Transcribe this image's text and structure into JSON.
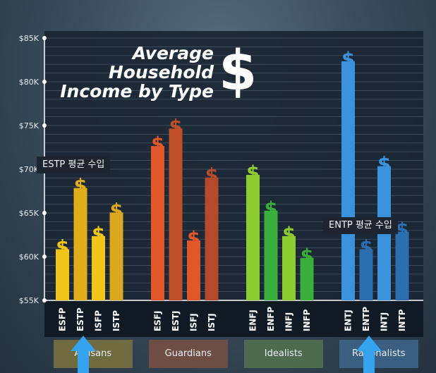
{
  "chart_data": {
    "type": "bar",
    "title_lines": [
      "Average",
      "Household",
      "Income by Type"
    ],
    "title_symbol": "$",
    "bar_symbol": "$",
    "ylim": [
      55000,
      85000
    ],
    "y_ticks": [
      {
        "value": 55000,
        "label": "$55K"
      },
      {
        "value": 60000,
        "label": "$60K"
      },
      {
        "value": 65000,
        "label": "$65K"
      },
      {
        "value": 70000,
        "label": "$70K"
      },
      {
        "value": 75000,
        "label": "$75K"
      },
      {
        "value": 80000,
        "label": "$80K"
      },
      {
        "value": 85000,
        "label": "$85K"
      }
    ],
    "groups": [
      {
        "name": "Artisans",
        "color": "#e3b31c",
        "label_bg": "#6f6a3f",
        "bars": [
          {
            "label": "ESFP",
            "value": 61500,
            "color": "#f0c419"
          },
          {
            "label": "ESTP",
            "value": 68500,
            "color": "#e0ad1c"
          },
          {
            "label": "ISFP",
            "value": 63000,
            "color": "#f0c419"
          },
          {
            "label": "ISTP",
            "value": 65700,
            "color": "#dba71f"
          }
        ]
      },
      {
        "name": "Guardians",
        "color": "#c65a2c",
        "label_bg": "#6e4d44",
        "bars": [
          {
            "label": "ESFJ",
            "value": 73300,
            "color": "#e1572a"
          },
          {
            "label": "ESTJ",
            "value": 75300,
            "color": "#bf4f28"
          },
          {
            "label": "ISFJ",
            "value": 62500,
            "color": "#e1572a"
          },
          {
            "label": "ISTJ",
            "value": 69700,
            "color": "#b54a2a"
          }
        ]
      },
      {
        "name": "Idealists",
        "color": "#49b43b",
        "label_bg": "#4e6b4f",
        "bars": [
          {
            "label": "ENFJ",
            "value": 70000,
            "color": "#8ccc2f"
          },
          {
            "label": "ENFP",
            "value": 65900,
            "color": "#3aaf3a"
          },
          {
            "label": "INFJ",
            "value": 63000,
            "color": "#8ccc2f"
          },
          {
            "label": "INFP",
            "value": 60500,
            "color": "#3aaf3a"
          }
        ]
      },
      {
        "name": "Rationalists",
        "color": "#2f7fc7",
        "label_bg": "#3b5f80",
        "bars": [
          {
            "label": "ENTJ",
            "value": 83000,
            "color": "#3b92dd"
          },
          {
            "label": "ENTP",
            "value": 61500,
            "color": "#2b6fb0"
          },
          {
            "label": "INTJ",
            "value": 71000,
            "color": "#3b92dd"
          },
          {
            "label": "INTP",
            "value": 63500,
            "color": "#2b6fb0"
          }
        ]
      }
    ],
    "annotations": [
      {
        "text": "ESTP 평균 수입",
        "target": "ESTP"
      },
      {
        "text": "ENTP 평균 수입",
        "target": "ENTP"
      }
    ],
    "highlighted": [
      "ESTP",
      "ENTP"
    ],
    "arrow_color": "#36a3f0",
    "grid": true
  }
}
